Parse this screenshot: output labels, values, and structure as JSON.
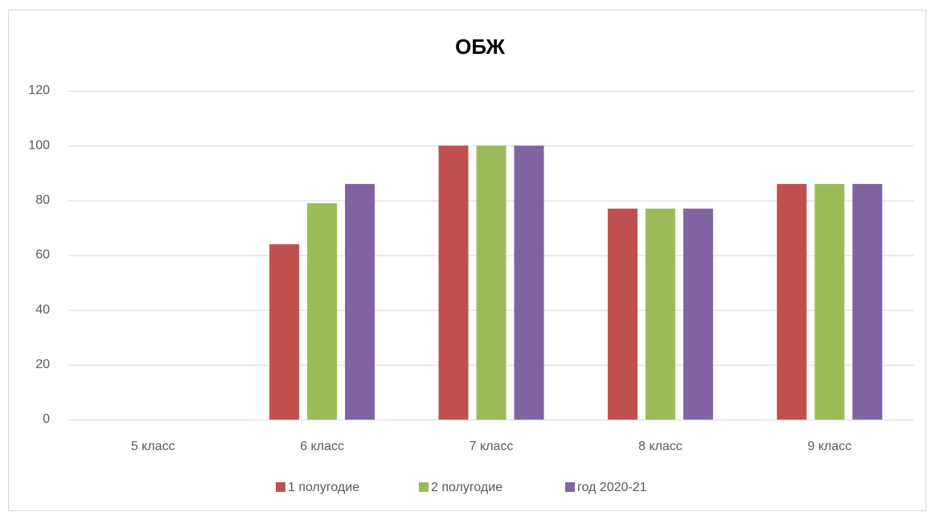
{
  "chart_data": {
    "type": "bar",
    "title": "ОБЖ",
    "categories": [
      "5 класс",
      "6 класс",
      "7 класс",
      "8 класс",
      "9 класс"
    ],
    "series": [
      {
        "name": "1 полугодие",
        "color": "#c0504d",
        "values": [
          null,
          64,
          100,
          77,
          86
        ]
      },
      {
        "name": "2 полугодие",
        "color": "#9bbb59",
        "values": [
          null,
          79,
          100,
          77,
          86
        ]
      },
      {
        "name": "год 2020-21",
        "color": "#8064a2",
        "values": [
          null,
          86,
          100,
          77,
          86
        ]
      }
    ],
    "ylim": [
      0,
      120
    ],
    "yticks": [
      0,
      20,
      40,
      60,
      80,
      100,
      120
    ],
    "grid": true,
    "legend": "bottom"
  }
}
